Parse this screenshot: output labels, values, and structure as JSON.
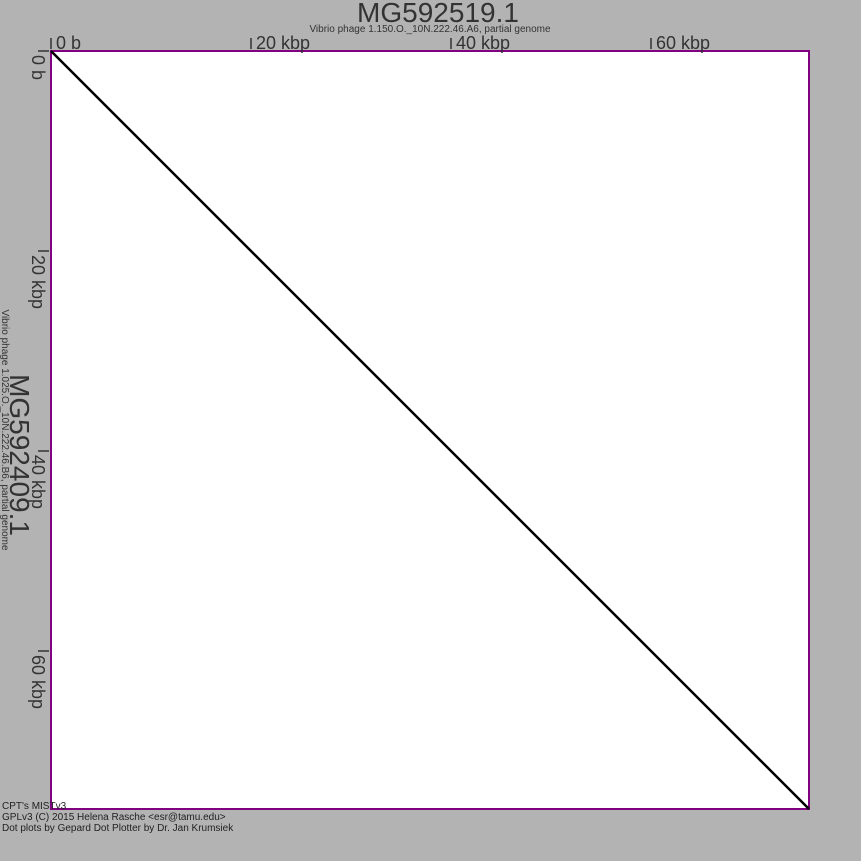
{
  "chart_data": {
    "type": "scatter",
    "title": "MG592519.1",
    "subtitle": "Vibrio phage 1.150.O._10N.222.46.A6, partial genome",
    "ylabel": "MG592409.1",
    "ysubtitle": "Vibrio phage 1.025.O._10N.222.46.B6, partial genome",
    "xlim": [
      0,
      75800
    ],
    "ylim": [
      0,
      75800
    ],
    "x_ticks": [
      {
        "value": 0,
        "label": "0 b"
      },
      {
        "value": 20000,
        "label": "20 kbp"
      },
      {
        "value": 40000,
        "label": "40 kbp"
      },
      {
        "value": 60000,
        "label": "60 kbp"
      }
    ],
    "y_ticks": [
      {
        "value": 0,
        "label": "0 b"
      },
      {
        "value": 20000,
        "label": "20 kbp"
      },
      {
        "value": 40000,
        "label": "40 kbp"
      },
      {
        "value": 60000,
        "label": "60 kbp"
      }
    ],
    "segments": [
      {
        "x": [
          0,
          75800
        ],
        "y": [
          0,
          75800
        ]
      }
    ],
    "grid": false,
    "colors": {
      "background": "#b3b3b3",
      "plot_area": "#ffffff",
      "frame": "#800080",
      "dots": "#000000",
      "text": "#333333"
    }
  },
  "footer": {
    "line1": "CPT's MISTv3",
    "line2": "GPLv3 (C) 2015 Helena Rasche <esr@tamu.edu>",
    "line3": "Dot plots by Gepard Dot Plotter by Dr. Jan Krumsiek"
  }
}
